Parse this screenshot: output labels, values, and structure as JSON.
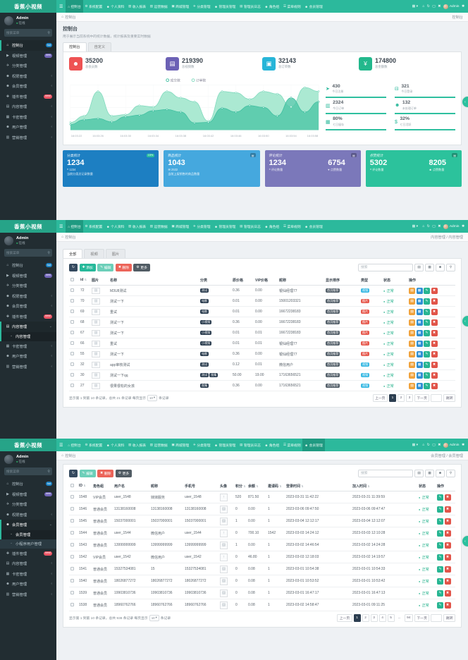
{
  "ui": {
    "brand": "香蕉小视频",
    "breadcrumb_home": "控制台",
    "navbar": {
      "items": [
        {
          "icon": "home",
          "label": "控制台"
        },
        {
          "icon": "gear",
          "label": "系统配置"
        },
        {
          "icon": "user",
          "label": "个人资料"
        },
        {
          "icon": "chart",
          "label": "收入报表"
        },
        {
          "icon": "chart",
          "label": "运营数据"
        },
        {
          "icon": "box",
          "label": "商城管理"
        },
        {
          "icon": "plane",
          "label": "分类管理"
        },
        {
          "icon": "admin",
          "label": "管理员管理"
        },
        {
          "icon": "log",
          "label": "管理员日志"
        },
        {
          "icon": "users",
          "label": "角色组"
        },
        {
          "icon": "menu",
          "label": "菜单规则"
        },
        {
          "icon": "member",
          "label": "会员管理"
        }
      ],
      "right_icons": [
        "home",
        "refresh",
        "fullscreen",
        "close"
      ],
      "user": "Admin"
    },
    "sidebar": {
      "user": {
        "name": "Admin",
        "status": "在线"
      },
      "search_placeholder": "搜索菜单",
      "items": [
        {
          "icon": "dashboard",
          "label": "控制台",
          "badge": "hot",
          "badge_color": "blue"
        },
        {
          "icon": "video",
          "label": "视频管理",
          "badge": "new",
          "badge_color": "purple"
        },
        {
          "icon": "plane",
          "label": "分类管理"
        },
        {
          "icon": "users",
          "label": "权限管理",
          "chevron": true
        },
        {
          "icon": "member",
          "label": "会员管理",
          "chevron": true,
          "children": [
            "会员管理",
            "小程序用户管理"
          ]
        },
        {
          "icon": "plugin",
          "label": "插件管理",
          "badge": "new!",
          "badge_color": "red"
        },
        {
          "icon": "content",
          "label": "内容管理",
          "chevron": true,
          "children": [
            "内容管理"
          ]
        },
        {
          "icon": "card",
          "label": "卡密管理",
          "chevron": true
        },
        {
          "icon": "user",
          "label": "用户管理",
          "chevron": true
        },
        {
          "icon": "chart",
          "label": "营销管理",
          "chevron": true
        }
      ]
    },
    "screens": [
      {
        "type": "dashboard",
        "nav_active": 0,
        "crumb_right": "控制台",
        "sidebar": {
          "active": 0,
          "expanded": -1,
          "child": -1
        }
      },
      {
        "type": "content",
        "nav_active": 0,
        "crumb_right": "内容管理 / 内容管理",
        "sidebar": {
          "active": 6,
          "expanded": 6,
          "child": 0
        }
      },
      {
        "type": "member",
        "nav_active": 11,
        "crumb_right": "会员管理 / 会员管理",
        "sidebar": {
          "active": 4,
          "expanded": 4,
          "child": 0
        }
      }
    ]
  },
  "dashboard": {
    "title": "控制台",
    "subtitle": "用于展示当前系统中的统计数据，统计报表及重要实时数据",
    "tabs": [
      "控制台",
      "自定义"
    ],
    "stats": [
      {
        "value": "35200",
        "label": "总会员数",
        "icon": "users",
        "color": "#ee5253"
      },
      {
        "value": "219390",
        "label": "总视频数",
        "icon": "book",
        "color": "#6c61b5"
      },
      {
        "value": "32143",
        "label": "总订单数",
        "icon": "bag",
        "color": "#27b5d8"
      },
      {
        "value": "174800",
        "label": "总金额数",
        "icon": "yen",
        "color": "#22b88c"
      }
    ],
    "mini_stats": [
      {
        "value": "430",
        "label": "今日注册",
        "icon": "rocket"
      },
      {
        "value": "321",
        "label": "今日登录",
        "icon": "cart"
      },
      {
        "value": "2324",
        "label": "今日订单",
        "icon": "chart"
      },
      {
        "value": "132",
        "label": "未处理订单",
        "icon": "users"
      },
      {
        "value": "80%",
        "label": "七日留存",
        "icon": "card"
      },
      {
        "value": "32%",
        "label": "七日活跃",
        "icon": "dollar"
      }
    ],
    "panels": [
      {
        "title": "分类统计",
        "badge": "15%",
        "badge_green": true,
        "big": "1234",
        "sub_icon": "comment",
        "sub": "1234",
        "desc": "当前分类总记录数量",
        "color": "#1d7fc2"
      },
      {
        "title": "商品统计",
        "badge": "▤",
        "big": "1043",
        "sub_icon": "list",
        "sub": "2532",
        "desc": "当前上架销售的商品数量",
        "color": "#45a8de"
      },
      {
        "title": "评论统计",
        "badge": "▤",
        "nums": [
          {
            "v": "1234",
            "l": "评论数量",
            "icon": "comment"
          },
          {
            "v": "6754",
            "l": "点赞数量",
            "icon": "heart"
          }
        ],
        "color": "#7b78ba"
      },
      {
        "title": "点赞统计",
        "badge": "▤",
        "nums": [
          {
            "v": "5302",
            "l": "评论数量",
            "icon": "comment"
          },
          {
            "v": "8205",
            "l": "点赞数量",
            "icon": "member"
          }
        ],
        "color": "#2cc29c"
      }
    ]
  },
  "chart_data": {
    "type": "area",
    "title": "",
    "legend_position": "top",
    "grid": true,
    "x": [
      "16:03:22",
      "16:03:26",
      "16:03:30",
      "16:03:34",
      "16:03:38",
      "16:03:42",
      "16:03:46",
      "16:03:50",
      "16:03:54",
      "16:03:58"
    ],
    "ylim": [
      0,
      175
    ],
    "series": [
      {
        "name": "成交数",
        "color": "#3fbfa0",
        "fill": "rgba(77,198,166,0.80)",
        "values": [
          22,
          40,
          45,
          32,
          52,
          58,
          75,
          80,
          70,
          28,
          30,
          85,
          70,
          95,
          88,
          55,
          125,
          70,
          110
        ]
      },
      {
        "name": "订单数",
        "color": "#7fd9bd",
        "fill": "rgba(166,232,208,0.95)",
        "values": [
          30,
          55,
          150,
          55,
          60,
          95,
          90,
          150,
          125,
          110,
          35,
          150,
          145,
          120,
          150,
          140,
          90,
          165,
          150
        ]
      }
    ]
  },
  "content_page": {
    "tabs": [
      "全部",
      "视频",
      "图片"
    ],
    "toolbar_buttons": [
      {
        "name": "refresh",
        "icon": "refresh",
        "label": "",
        "color": "#34495e"
      },
      {
        "name": "add",
        "icon": "add",
        "label": "添加",
        "color": "#26b99a"
      },
      {
        "name": "edit",
        "icon": "edit",
        "label": "编辑",
        "color": "#6ccfb9"
      },
      {
        "name": "delete",
        "icon": "del",
        "label": "删除",
        "color": "#ec6459"
      },
      {
        "name": "more",
        "icon": "more",
        "label": "更多",
        "color": "#515c64"
      }
    ],
    "search_placeholder": "搜索",
    "tools": [
      "panel",
      "columns",
      "export",
      "search"
    ],
    "columns": [
      "id",
      "图片",
      "名称",
      "分类",
      "原价格",
      "VIP价格",
      "昵称",
      "显示排序",
      "类型",
      "状态",
      "操作"
    ],
    "row_ops": [
      {
        "icon": "detail",
        "color": "#f0a23c"
      },
      {
        "icon": "view",
        "color": "#2e8fd4"
      },
      {
        "icon": "edit",
        "color": "#27b592"
      },
      {
        "icon": "trash",
        "color": "#e15449"
      }
    ],
    "rows": [
      {
        "id": "72",
        "name": "M3U8测试",
        "cat": [
          "测试"
        ],
        "price": "0.36",
        "vip": "0.00",
        "nick": "银仙经理77",
        "sort": "首页推荐",
        "type": "视频",
        "type_color": "blue",
        "status": "正常"
      },
      {
        "id": "70",
        "name": "测试一下",
        "cat": [
          "电影"
        ],
        "price": "0.01",
        "vip": "0.00",
        "nick": "15001203321",
        "sort": "首页推荐",
        "type": "图片",
        "type_color": "red",
        "status": "正常"
      },
      {
        "id": "69",
        "name": "重试",
        "cat": [
          "电影"
        ],
        "price": "0.01",
        "vip": "0.00",
        "nick": "16672238183",
        "sort": "首页推荐",
        "type": "图片",
        "type_color": "red",
        "status": "正常"
      },
      {
        "id": "68",
        "name": "测试一下",
        "cat": [
          "小视频"
        ],
        "price": "0.36",
        "vip": "0.00",
        "nick": "16672238183",
        "sort": "首页推荐",
        "type": "图片",
        "type_color": "red",
        "status": "正常"
      },
      {
        "id": "67",
        "name": "测试一下",
        "cat": [
          "小视频"
        ],
        "price": "0.01",
        "vip": "0.01",
        "nick": "16672238183",
        "sort": "首页推荐",
        "type": "图片",
        "type_color": "red",
        "status": "正常"
      },
      {
        "id": "66",
        "name": "重试",
        "cat": [
          "小视频"
        ],
        "price": "0.01",
        "vip": "0.01",
        "nick": "银仙经理77",
        "sort": "首页推荐",
        "type": "图片",
        "type_color": "red",
        "status": "正常"
      },
      {
        "id": "55",
        "name": "测试一下",
        "cat": [
          "电影"
        ],
        "price": "0.36",
        "vip": "0.00",
        "nick": "银仙经理77",
        "sort": "首页推荐",
        "type": "图片",
        "type_color": "red",
        "status": "正常"
      },
      {
        "id": "32",
        "name": "app审核测试",
        "cat": [
          "测试"
        ],
        "price": "0.12",
        "vip": "0.01",
        "nick": "微信用户",
        "sort": "首页推荐",
        "type": "视频",
        "type_color": "blue",
        "status": "正常"
      },
      {
        "id": "30",
        "name": "测试一下qq",
        "cat": [
          "测试",
          "图集"
        ],
        "price": "50.00",
        "vip": "19.00",
        "nick": "17163656521",
        "sort": "首页推荐",
        "type": "视频",
        "type_color": "blue",
        "status": "正常"
      },
      {
        "id": "27",
        "name": "很果很松的女孩",
        "cat": [
          "图集"
        ],
        "price": "0.36",
        "vip": "0.00",
        "nick": "17163656521",
        "sort": "首页推荐",
        "type": "视频",
        "type_color": "blue",
        "status": "正常"
      }
    ],
    "footer": "显示第 1 到第 10 条记录，总共 21 条记录 每页显示",
    "per_page": "10",
    "footer2": "条记录",
    "pagination": {
      "prev": "上一页",
      "next": "下一页",
      "pages": [
        "1",
        "2",
        "3"
      ],
      "active": "1",
      "jump": "跳转"
    }
  },
  "member_page": {
    "toolbar_buttons": [
      {
        "name": "refresh",
        "icon": "refresh",
        "label": "",
        "color": "#34495e"
      },
      {
        "name": "edit",
        "icon": "edit",
        "label": "编辑",
        "color": "#6ccfb9"
      },
      {
        "name": "delete",
        "icon": "del",
        "label": "删除",
        "color": "#ec6459"
      },
      {
        "name": "more",
        "icon": "more",
        "label": "更多",
        "color": "#515c64"
      }
    ],
    "search_placeholder": "搜索",
    "tools": [
      "panel",
      "columns",
      "export",
      "search"
    ],
    "columns": [
      {
        "label": "ID",
        "sort": true
      },
      {
        "label": "角色组",
        "sort": false
      },
      {
        "label": "用户名",
        "sort": false
      },
      {
        "label": "昵称",
        "sort": false
      },
      {
        "label": "手机号",
        "sort": false
      },
      {
        "label": "头像",
        "sort": false
      },
      {
        "label": "积分",
        "sort": true
      },
      {
        "label": "余额",
        "sort": true
      },
      {
        "label": "邀请码",
        "sort": true
      },
      {
        "label": "登录时间",
        "sort": true
      },
      {
        "label": "加入时间",
        "sort": true
      },
      {
        "label": "状态",
        "sort": false
      },
      {
        "label": "操作",
        "sort": false
      }
    ],
    "row_ops": [
      {
        "icon": "edit",
        "color": "#27b592"
      },
      {
        "icon": "trash",
        "color": "#e15449"
      }
    ],
    "rows": [
      {
        "id": "1548",
        "role": "VIP会员",
        "username": "user_1548",
        "nick": "妹妹服务",
        "phone": "user_1548",
        "avatar": "upload",
        "score": "520",
        "money": "871.50",
        "invite": "1",
        "login": "2023-03-31 11:42:22",
        "join": "2023-03-31 11:39:59",
        "status": "正常"
      },
      {
        "id": "1546",
        "role": "普通会员",
        "username": "13138160008",
        "nick": "13138160008",
        "phone": "13138160008",
        "avatar": "img",
        "score": "0",
        "money": "0.00",
        "invite": "1",
        "login": "2023-03-06 09:47:50",
        "join": "2023-03-06 09:47:47",
        "status": "正常"
      },
      {
        "id": "1545",
        "role": "普通会员",
        "username": "15037000001",
        "nick": "15037000001",
        "phone": "15037000001",
        "avatar": "img",
        "score": "1",
        "money": "0.00",
        "invite": "1",
        "login": "2023-03-04 12:12:17",
        "join": "2023-03-04 12:12:07",
        "status": "正常"
      },
      {
        "id": "1544",
        "role": "普通会员",
        "username": "user_1544",
        "nick": "微信用户",
        "phone": "user_1544",
        "avatar": "upload",
        "score": "0",
        "money": "700.10",
        "invite": "1542",
        "login": "2023-03-03 14:24:12",
        "join": "2023-03-03 12:10:28",
        "status": "正常"
      },
      {
        "id": "1543",
        "role": "普通会员",
        "username": "13999999999",
        "nick": "13999999999",
        "phone": "13999999999",
        "avatar": "img",
        "score": "1",
        "money": "0.00",
        "invite": "1",
        "login": "2023-03-02 14:46:54",
        "join": "2023-03-02 14:24:28",
        "status": "正常"
      },
      {
        "id": "1542",
        "role": "VIP会员",
        "username": "user_1542",
        "nick": "微信用户",
        "phone": "user_1542",
        "avatar": "upload",
        "score": "0",
        "money": "46.80",
        "invite": "1",
        "login": "2023-03-03 12:18:03",
        "join": "2023-03-02 14:19:57",
        "status": "正常"
      },
      {
        "id": "1541",
        "role": "普通会员",
        "username": "15327534081",
        "nick": "15",
        "phone": "15327534081",
        "avatar": "img",
        "score": "0",
        "money": "0.08",
        "invite": "1",
        "login": "2023-03-01 10:54:38",
        "join": "2023-03-01 10:54:33",
        "status": "正常"
      },
      {
        "id": "1540",
        "role": "普通会员",
        "username": "18026877272",
        "nick": "18026877272",
        "phone": "18026877272",
        "avatar": "img",
        "score": "0",
        "money": "0.08",
        "invite": "1",
        "login": "2023-03-01 10:53:52",
        "join": "2023-03-01 10:53:42",
        "status": "正常"
      },
      {
        "id": "1539",
        "role": "普通会员",
        "username": "19903810736",
        "nick": "19903810736",
        "phone": "19903810736",
        "avatar": "img",
        "score": "0",
        "money": "0.08",
        "invite": "1",
        "login": "2023-03-01 16:47:17",
        "join": "2023-03-01 16:47:13",
        "status": "正常"
      },
      {
        "id": "1538",
        "role": "普通会员",
        "username": "18960762766",
        "nick": "18960762766",
        "phone": "18960762766",
        "avatar": "img",
        "score": "0",
        "money": "0.08",
        "invite": "1",
        "login": "2023-03-02 14:58:47",
        "join": "2023-03-01 09:11:25",
        "status": "正常"
      }
    ],
    "footer": "显示第 1 到第 10 条记录，总共 938 条记录 每页显示",
    "per_page": "10",
    "footer2": "条记录",
    "pagination": {
      "prev": "上一页",
      "next": "下一页",
      "pages": [
        "1",
        "2",
        "3",
        "4",
        "5",
        "...",
        "94"
      ],
      "active": "1",
      "jump": "跳转"
    }
  }
}
